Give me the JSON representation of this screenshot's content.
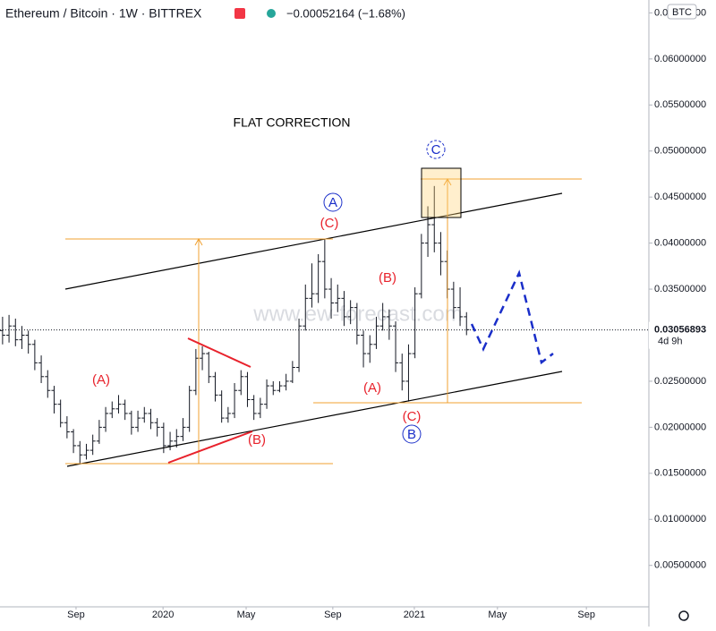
{
  "chart_data": {
    "type": "ohlc",
    "symbol": "Ethereum / Bitcoin · 1W · BITTREX",
    "change": "−0.00052164 (−1.68%)",
    "currency": "BTC",
    "title": "FLAT CORRECTION",
    "watermark": "www.ew-forecast.com",
    "annotations": [
      "(A)",
      "(B)",
      "(C)",
      "(B)",
      "(A)",
      "(C)",
      "A",
      "B",
      "C"
    ],
    "last_price": 0.03056893,
    "countdown": "4d 9h",
    "color": "#131722",
    "categories": [
      null,
      null,
      null,
      null,
      null,
      null,
      null,
      null,
      null,
      null,
      null,
      null,
      null,
      null,
      null,
      null,
      null,
      null,
      null,
      null,
      null,
      null,
      null,
      null,
      null,
      null,
      null,
      null,
      null,
      null,
      null,
      null,
      null,
      null,
      null,
      null,
      null,
      null,
      null,
      null,
      null,
      null,
      null,
      null,
      null,
      null,
      null,
      null,
      null,
      null,
      null,
      null,
      null,
      null,
      null,
      null,
      null,
      null,
      null,
      null,
      null,
      null,
      null,
      null,
      null,
      null,
      null,
      null,
      null,
      null,
      null,
      null,
      null
    ],
    "open": [
      0.0305,
      0.03,
      0.031,
      0.0295,
      0.03,
      0.029,
      0.027,
      0.0255,
      0.024,
      0.0225,
      0.0205,
      0.0195,
      0.018,
      0.017,
      0.0175,
      0.0185,
      0.02,
      0.0215,
      0.022,
      0.0225,
      0.0215,
      0.02,
      0.021,
      0.0215,
      0.0205,
      0.02,
      0.018,
      0.0185,
      0.019,
      0.02,
      0.024,
      0.0275,
      0.028,
      0.0255,
      0.0235,
      0.021,
      0.0215,
      0.024,
      0.0255,
      0.023,
      0.0215,
      0.0225,
      0.0245,
      0.024,
      0.0245,
      0.025,
      0.0265,
      0.031,
      0.034,
      0.0345,
      0.038,
      0.035,
      0.0335,
      0.034,
      0.032,
      0.033,
      0.03,
      0.028,
      0.029,
      0.031,
      0.032,
      0.031,
      0.027,
      0.025,
      0.028,
      0.0345,
      0.04,
      0.042,
      0.04,
      0.038,
      0.035,
      0.033,
      0.032
    ],
    "high": [
      0.032,
      0.0322,
      0.0318,
      0.031,
      0.0305,
      0.0295,
      0.0278,
      0.0262,
      0.0245,
      0.023,
      0.0212,
      0.0198,
      0.0185,
      0.0182,
      0.0192,
      0.0208,
      0.0222,
      0.0228,
      0.0235,
      0.023,
      0.0218,
      0.0218,
      0.0222,
      0.022,
      0.021,
      0.0205,
      0.0195,
      0.0198,
      0.021,
      0.0245,
      0.0285,
      0.0288,
      0.0282,
      0.026,
      0.024,
      0.0222,
      0.0248,
      0.0262,
      0.026,
      0.0235,
      0.0232,
      0.0252,
      0.025,
      0.025,
      0.0258,
      0.0272,
      0.0318,
      0.0355,
      0.0378,
      0.0388,
      0.0405,
      0.0362,
      0.0355,
      0.0348,
      0.0338,
      0.0335,
      0.0305,
      0.03,
      0.032,
      0.0335,
      0.0328,
      0.0315,
      0.028,
      0.029,
      0.0352,
      0.041,
      0.044,
      0.0462,
      0.0412,
      0.0392,
      0.0358,
      0.0352,
      0.0325
    ],
    "low": [
      0.029,
      0.0292,
      0.0288,
      0.0285,
      0.028,
      0.0262,
      0.0248,
      0.0232,
      0.0215,
      0.02,
      0.0188,
      0.0172,
      0.016,
      0.0165,
      0.017,
      0.0182,
      0.0195,
      0.021,
      0.0215,
      0.0208,
      0.0192,
      0.0195,
      0.0205,
      0.0198,
      0.019,
      0.0172,
      0.0175,
      0.0178,
      0.0185,
      0.0195,
      0.0235,
      0.0262,
      0.0248,
      0.0228,
      0.0205,
      0.0205,
      0.021,
      0.0235,
      0.0222,
      0.0208,
      0.021,
      0.022,
      0.0235,
      0.0238,
      0.024,
      0.0248,
      0.026,
      0.0305,
      0.033,
      0.0335,
      0.034,
      0.0318,
      0.0325,
      0.031,
      0.0312,
      0.029,
      0.0265,
      0.027,
      0.0285,
      0.0305,
      0.0295,
      0.026,
      0.024,
      0.0228,
      0.0275,
      0.034,
      0.0385,
      0.039,
      0.0365,
      0.034,
      0.0318,
      0.031,
      0.03
    ],
    "close": [
      0.03,
      0.031,
      0.0295,
      0.03,
      0.029,
      0.027,
      0.0255,
      0.024,
      0.0225,
      0.0205,
      0.0195,
      0.018,
      0.017,
      0.0175,
      0.0185,
      0.02,
      0.0215,
      0.022,
      0.0225,
      0.0215,
      0.02,
      0.021,
      0.0215,
      0.0205,
      0.02,
      0.018,
      0.0185,
      0.019,
      0.02,
      0.024,
      0.0275,
      0.028,
      0.0255,
      0.0235,
      0.021,
      0.0215,
      0.024,
      0.0255,
      0.023,
      0.0215,
      0.0225,
      0.0245,
      0.024,
      0.0245,
      0.025,
      0.0265,
      0.031,
      0.034,
      0.0345,
      0.038,
      0.035,
      0.0335,
      0.034,
      0.032,
      0.033,
      0.03,
      0.028,
      0.029,
      0.031,
      0.032,
      0.031,
      0.027,
      0.025,
      0.028,
      0.0345,
      0.04,
      0.042,
      0.04,
      0.038,
      0.035,
      0.033,
      0.032,
      0.0306
    ],
    "xlim": [
      -0.4,
      100.3
    ],
    "xticks": [
      {
        "value": 11.4,
        "label": "Sep"
      },
      {
        "value": 24.9,
        "label": "2020"
      },
      {
        "value": 37.8,
        "label": "May"
      },
      {
        "value": 51.25,
        "label": "Sep"
      },
      {
        "value": 63.9,
        "label": "2021"
      },
      {
        "value": 76.8,
        "label": "May"
      },
      {
        "value": 90.6,
        "label": "Sep"
      }
    ],
    "ylim": [
      0.0005,
      0.0664
    ],
    "yticks": [
      {
        "value": 0.005,
        "label": "0.00500000"
      },
      {
        "value": 0.01,
        "label": "0.01000000"
      },
      {
        "value": 0.015,
        "label": "0.01500000"
      },
      {
        "value": 0.02,
        "label": "0.02000000"
      },
      {
        "value": 0.025,
        "label": "0.02500000"
      },
      {
        "value": 0.03,
        "label": "0.03000000"
      },
      {
        "value": 0.035,
        "label": "0.03500000"
      },
      {
        "value": 0.04,
        "label": "0.04000000"
      },
      {
        "value": 0.045,
        "label": "0.04500000"
      },
      {
        "value": 0.05,
        "label": "0.05000000"
      },
      {
        "value": 0.055,
        "label": "0.05500000"
      },
      {
        "value": 0.06,
        "label": "0.06000000"
      },
      {
        "value": 0.065,
        "label": "0.06500000"
      }
    ],
    "grid": false
  }
}
